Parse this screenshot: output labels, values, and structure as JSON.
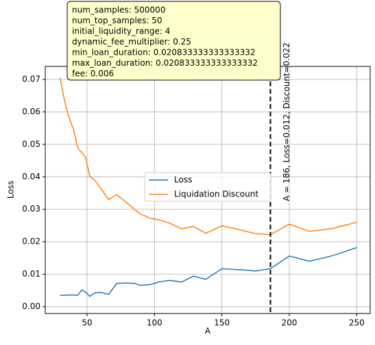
{
  "chart_data": {
    "type": "line",
    "x_label": "A",
    "y_label": "Loss",
    "x": [
      30,
      33,
      36,
      40,
      43,
      46,
      49,
      52,
      56,
      60,
      66,
      72,
      80,
      86,
      89,
      97,
      103,
      111,
      120,
      129,
      138,
      150,
      158,
      166,
      175,
      186,
      200,
      215,
      232,
      250
    ],
    "series": [
      {
        "name": "Loss",
        "color": "#1f77b4",
        "values": [
          0.0035,
          0.0035,
          0.0036,
          0.0036,
          0.0035,
          0.0051,
          0.0045,
          0.0032,
          0.0043,
          0.0044,
          0.0038,
          0.0072,
          0.0073,
          0.0071,
          0.0066,
          0.0068,
          0.0076,
          0.0081,
          0.0076,
          0.0094,
          0.0084,
          0.0117,
          0.0115,
          0.0113,
          0.011,
          0.0117,
          0.0156,
          0.014,
          0.0157,
          0.0182
        ]
      },
      {
        "name": "Liquidation Discount",
        "color": "#ff7f0e",
        "values": [
          0.0705,
          0.064,
          0.059,
          0.0545,
          0.049,
          0.0475,
          0.046,
          0.0402,
          0.0388,
          0.0365,
          0.033,
          0.0345,
          0.0318,
          0.0297,
          0.0287,
          0.0272,
          0.0268,
          0.0258,
          0.024,
          0.0247,
          0.0226,
          0.0249,
          0.0242,
          0.0234,
          0.0225,
          0.0222,
          0.0254,
          0.0232,
          0.0241,
          0.026
        ]
      }
    ],
    "xlim": [
      19,
      260
    ],
    "ylim": [
      -0.0021,
      0.074
    ],
    "xticks": [
      50,
      100,
      150,
      200,
      250
    ],
    "yticks": [
      {
        "value": 0,
        "label": "0.00"
      },
      0.01,
      0.02,
      0.03,
      0.04,
      0.05,
      0.06,
      0.07
    ],
    "grid": true,
    "vline": 186,
    "vline_label": "A = 186, Loss=0.012, Discount=0.022",
    "info_box": [
      "num_samples: 500000",
      "num_top_samples: 50",
      "initial_liquidity_range: 4",
      "dynamic_fee_multiplier: 0.25",
      "min_loan_duration: 0.020833333333333332",
      "max_loan_duration: 0.020833333333333332",
      "fee: 0.006"
    ]
  }
}
